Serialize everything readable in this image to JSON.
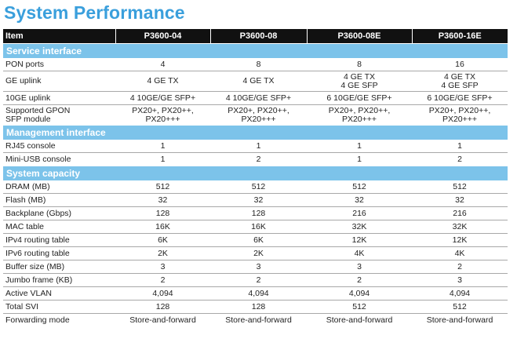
{
  "title": "System Performance",
  "header": {
    "item": "Item",
    "models": [
      "P3600-04",
      "P3600-08",
      "P3600-08E",
      "P3600-16E"
    ]
  },
  "sections": [
    {
      "name": "Service interface",
      "rows": [
        {
          "label": [
            "PON ports"
          ],
          "values": [
            [
              "4"
            ],
            [
              "8"
            ],
            [
              "8"
            ],
            [
              "16"
            ]
          ]
        },
        {
          "label": [
            "GE uplink"
          ],
          "values": [
            [
              "4 GE TX"
            ],
            [
              "4 GE TX"
            ],
            [
              "4 GE TX",
              "4 GE SFP"
            ],
            [
              "4 GE TX",
              "4 GE SFP"
            ]
          ]
        },
        {
          "label": [
            "10GE uplink"
          ],
          "values": [
            [
              "4 10GE/GE SFP+"
            ],
            [
              "4 10GE/GE SFP+"
            ],
            [
              "6 10GE/GE SFP+"
            ],
            [
              "6 10GE/GE SFP+"
            ]
          ]
        },
        {
          "label": [
            "Supported GPON",
            "SFP module"
          ],
          "values": [
            [
              "PX20+, PX20++,",
              "PX20+++"
            ],
            [
              "PX20+, PX20++,",
              "PX20+++"
            ],
            [
              "PX20+, PX20++,",
              "PX20+++"
            ],
            [
              "PX20+, PX20++,",
              "PX20+++"
            ]
          ]
        }
      ]
    },
    {
      "name": "Management interface",
      "rows": [
        {
          "label": [
            "RJ45 console"
          ],
          "values": [
            [
              "1"
            ],
            [
              "1"
            ],
            [
              "1"
            ],
            [
              "1"
            ]
          ]
        },
        {
          "label": [
            "Mini-USB console"
          ],
          "values": [
            [
              "1"
            ],
            [
              "2"
            ],
            [
              "1"
            ],
            [
              "2"
            ]
          ]
        }
      ]
    },
    {
      "name": "System capacity",
      "rows": [
        {
          "label": [
            "DRAM (MB)"
          ],
          "values": [
            [
              "512"
            ],
            [
              "512"
            ],
            [
              "512"
            ],
            [
              "512"
            ]
          ]
        },
        {
          "label": [
            "Flash (MB)"
          ],
          "values": [
            [
              "32"
            ],
            [
              "32"
            ],
            [
              "32"
            ],
            [
              "32"
            ]
          ]
        },
        {
          "label": [
            "Backplane (Gbps)"
          ],
          "values": [
            [
              "128"
            ],
            [
              "128"
            ],
            [
              "216"
            ],
            [
              "216"
            ]
          ]
        },
        {
          "label": [
            "MAC table"
          ],
          "values": [
            [
              "16K"
            ],
            [
              "16K"
            ],
            [
              "32K"
            ],
            [
              "32K"
            ]
          ]
        },
        {
          "label": [
            "IPv4 routing table"
          ],
          "values": [
            [
              "6K"
            ],
            [
              "6K"
            ],
            [
              "12K"
            ],
            [
              "12K"
            ]
          ]
        },
        {
          "label": [
            "IPv6 routing table"
          ],
          "values": [
            [
              "2K"
            ],
            [
              "2K"
            ],
            [
              "4K"
            ],
            [
              "4K"
            ]
          ]
        },
        {
          "label": [
            "Buffer size (MB)"
          ],
          "values": [
            [
              "3"
            ],
            [
              "3"
            ],
            [
              "3"
            ],
            [
              "2"
            ]
          ]
        },
        {
          "label": [
            "Jumbo frame (KB)"
          ],
          "values": [
            [
              "2"
            ],
            [
              "2"
            ],
            [
              "2"
            ],
            [
              "3"
            ]
          ]
        },
        {
          "label": [
            "Active VLAN"
          ],
          "values": [
            [
              "4,094"
            ],
            [
              "4,094"
            ],
            [
              "4,094"
            ],
            [
              "4,094"
            ]
          ]
        },
        {
          "label": [
            "Total SVI"
          ],
          "values": [
            [
              "128"
            ],
            [
              "128"
            ],
            [
              "512"
            ],
            [
              "512"
            ]
          ]
        },
        {
          "label": [
            "Forwarding mode"
          ],
          "values": [
            [
              "Store-and-forward"
            ],
            [
              "Store-and-forward"
            ],
            [
              "Store-and-forward"
            ],
            [
              "Store-and-forward"
            ]
          ]
        }
      ]
    }
  ]
}
